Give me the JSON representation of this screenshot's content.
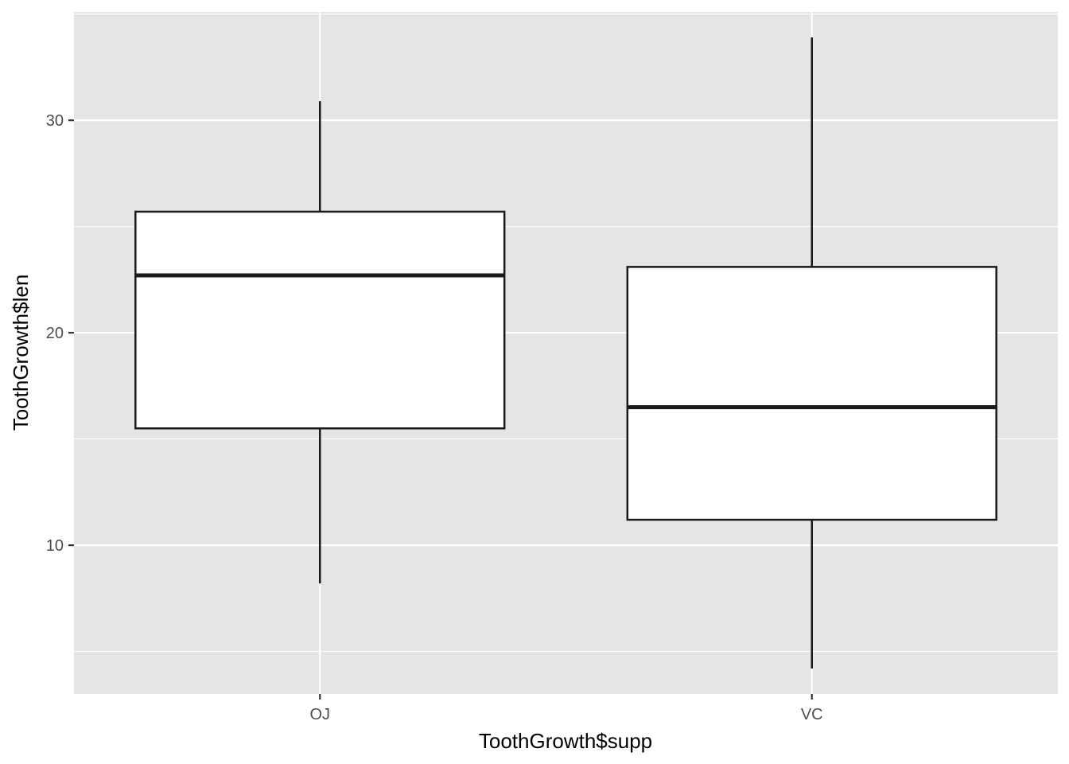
{
  "chart_data": {
    "type": "box",
    "title": "",
    "xlabel": "ToothGrowth$supp",
    "ylabel": "ToothGrowth$len",
    "categories": [
      "OJ",
      "VC"
    ],
    "boxes": [
      {
        "category": "OJ",
        "whisker_low": 8.2,
        "q1": 15.5,
        "median": 22.7,
        "q3": 25.7,
        "whisker_high": 30.9
      },
      {
        "category": "VC",
        "whisker_low": 4.2,
        "q1": 11.2,
        "median": 16.5,
        "q3": 23.1,
        "whisker_high": 33.9
      }
    ],
    "ylim": [
      3.0,
      35.1
    ],
    "y_ticks": [
      10,
      20,
      30
    ],
    "y_minor_gridlines": [
      5,
      15,
      25,
      35
    ],
    "grid": true,
    "colors": {
      "panel_background": "#e5e5e5",
      "gridline": "#ffffff",
      "box_fill": "#ffffff",
      "box_stroke": "#1a1a1a",
      "tick_mark": "#333333"
    }
  }
}
